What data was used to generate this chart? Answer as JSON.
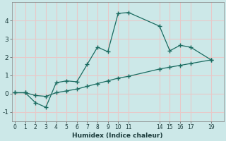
{
  "xlabel": "Humidex (Indice chaleur)",
  "background_color": "#cce8e8",
  "grid_color": "#e8c8c8",
  "line_color": "#1a6b60",
  "curve1_x": [
    0,
    1,
    2,
    3,
    4,
    5,
    6,
    7,
    8,
    9,
    10,
    11,
    14,
    15,
    16,
    17,
    19
  ],
  "curve1_y": [
    0.05,
    0.05,
    -0.5,
    -0.75,
    0.6,
    0.7,
    0.65,
    1.6,
    2.55,
    2.3,
    4.4,
    4.45,
    3.7,
    2.35,
    2.65,
    2.55,
    1.85
  ],
  "curve2_x": [
    0,
    1,
    2,
    3,
    4,
    5,
    6,
    7,
    8,
    9,
    10,
    11,
    14,
    15,
    16,
    17,
    19
  ],
  "curve2_y": [
    0.05,
    0.05,
    -0.1,
    -0.15,
    0.05,
    0.15,
    0.25,
    0.4,
    0.55,
    0.7,
    0.85,
    0.95,
    1.35,
    1.45,
    1.55,
    1.65,
    1.85
  ],
  "xlim": [
    -0.3,
    20.2
  ],
  "ylim": [
    -1.5,
    5.0
  ],
  "xticks": [
    0,
    1,
    2,
    3,
    4,
    5,
    6,
    7,
    8,
    9,
    10,
    11,
    14,
    15,
    16,
    17,
    19
  ],
  "yticks": [
    -1,
    0,
    1,
    2,
    3,
    4
  ],
  "figwidth": 3.2,
  "figheight": 2.0,
  "dpi": 100
}
